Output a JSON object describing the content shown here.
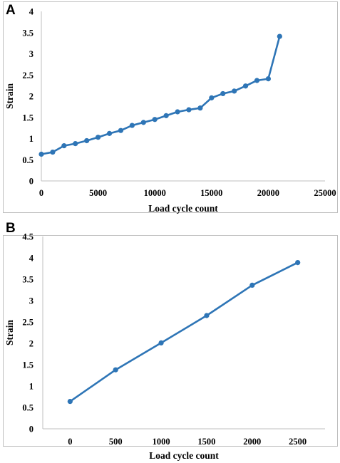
{
  "panels": [
    {
      "label": "A",
      "chart_data": {
        "type": "line",
        "xlabel": "Load cycle count",
        "ylabel": "Strain",
        "xlim": [
          0,
          25000
        ],
        "ylim": [
          0,
          4
        ],
        "xticks": [
          0,
          5000,
          10000,
          15000,
          20000,
          25000
        ],
        "xtick_labels": [
          "0",
          "5000",
          "10000",
          "15000",
          "20000",
          "25000"
        ],
        "yticks": [
          0,
          0.5,
          1,
          1.5,
          2,
          2.5,
          3,
          3.5,
          4
        ],
        "ytick_labels": [
          "0",
          "0.5",
          "1",
          "1.5",
          "2",
          "2.5",
          "3",
          "3.5",
          "4"
        ],
        "grid": false,
        "legend": "none",
        "series": [
          {
            "color": "#2E75B6",
            "x": [
              0,
              1000,
              2000,
              3000,
              4000,
              5000,
              6000,
              7000,
              8000,
              9000,
              10000,
              11000,
              12000,
              13000,
              14000,
              15000,
              16000,
              17000,
              18000,
              19000,
              20000,
              21000
            ],
            "y": [
              0.63,
              0.68,
              0.83,
              0.88,
              0.95,
              1.03,
              1.12,
              1.19,
              1.31,
              1.38,
              1.45,
              1.54,
              1.63,
              1.68,
              1.72,
              1.96,
              2.06,
              2.12,
              2.24,
              2.37,
              2.41,
              3.41
            ]
          }
        ]
      }
    },
    {
      "label": "B",
      "chart_data": {
        "type": "line",
        "xlabel": "Load cycle count",
        "ylabel": "Strain",
        "xlim": [
          -300,
          2800
        ],
        "ylim": [
          0,
          4.5
        ],
        "xticks": [
          0,
          500,
          1000,
          1500,
          2000,
          2500
        ],
        "xtick_labels": [
          "0",
          "500",
          "1000",
          "1500",
          "2000",
          "2500"
        ],
        "yticks": [
          0,
          0.5,
          1,
          1.5,
          2,
          2.5,
          3,
          3.5,
          4,
          4.5
        ],
        "ytick_labels": [
          "0",
          "0.5",
          "1",
          "1.5",
          "2",
          "2.5",
          "3",
          "3.5",
          "4",
          "4.5"
        ],
        "grid": false,
        "legend": "none",
        "series": [
          {
            "color": "#2E75B6",
            "x": [
              0,
              500,
              1000,
              1500,
              2000,
              2500
            ],
            "y": [
              0.64,
              1.38,
              2.01,
              2.65,
              3.36,
              3.89
            ]
          }
        ]
      }
    }
  ]
}
